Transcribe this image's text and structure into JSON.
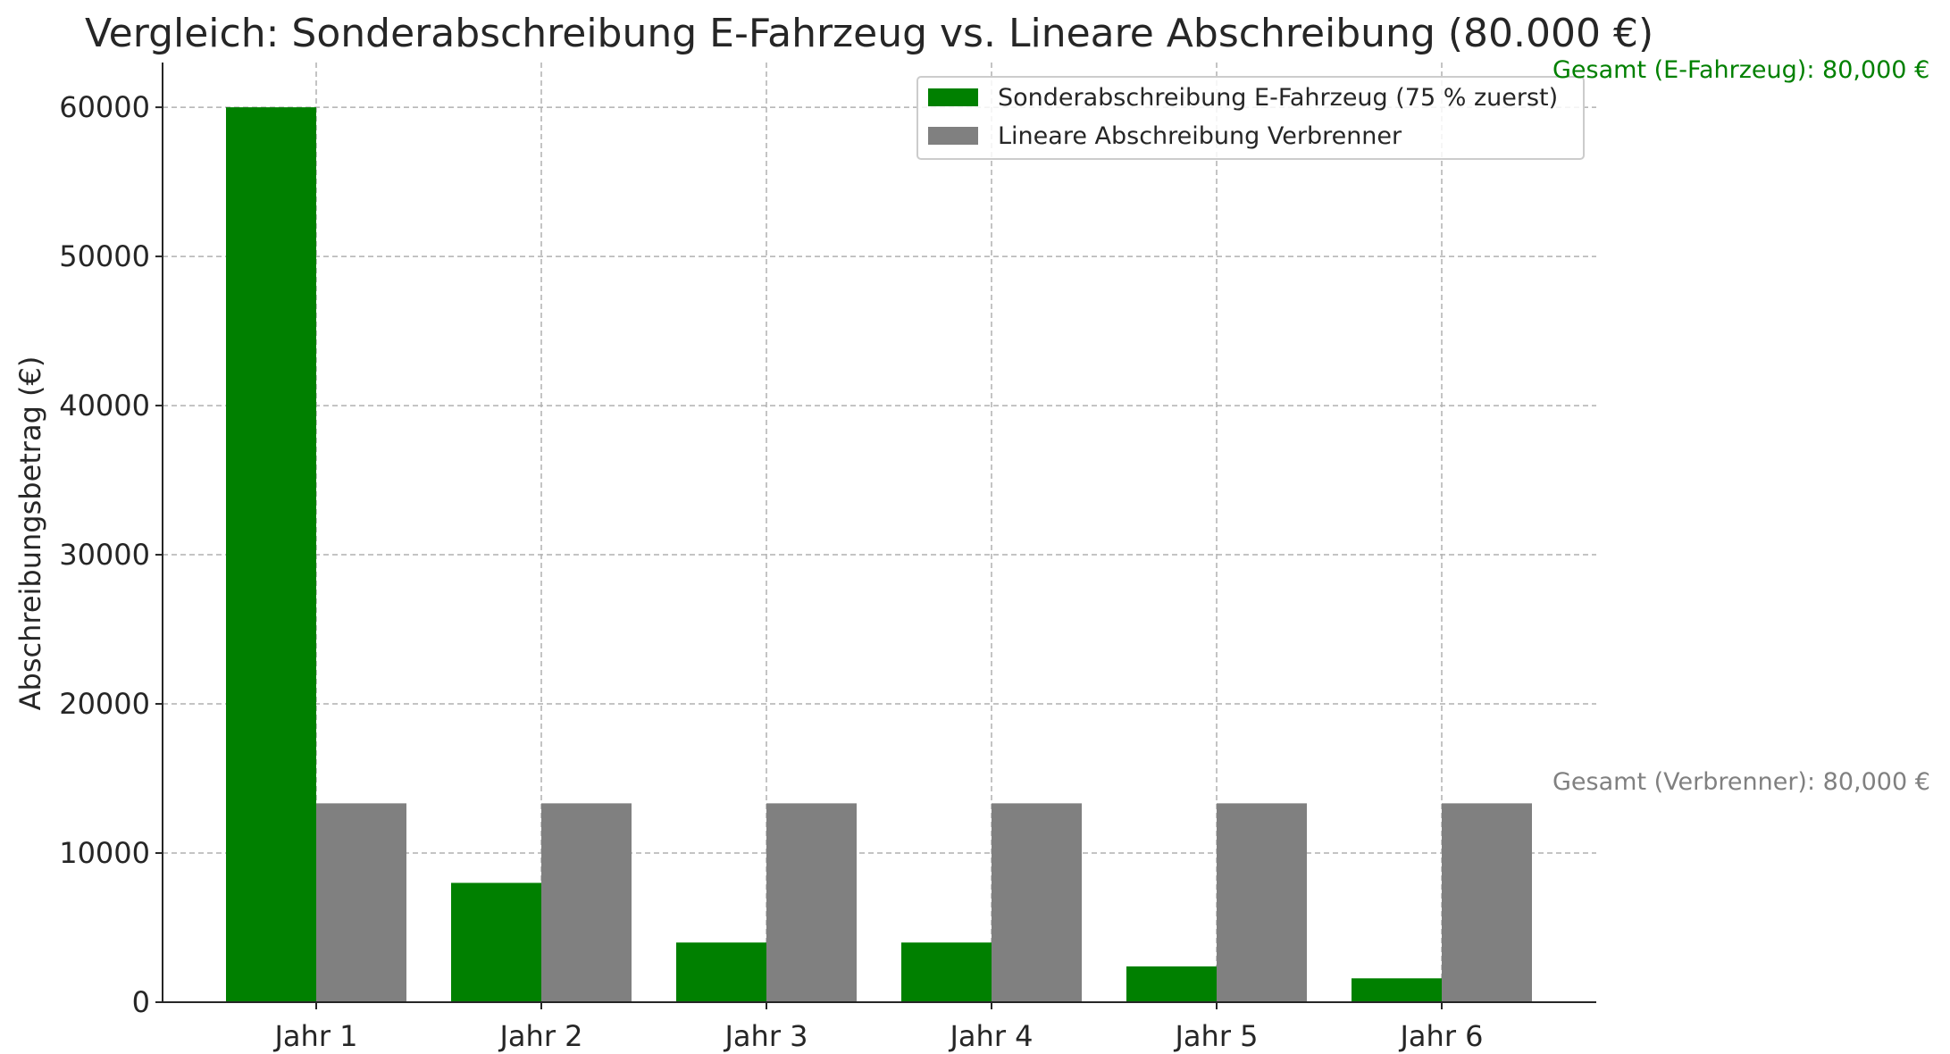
{
  "chart_data": {
    "type": "bar",
    "title": "Vergleich: Sonderabschreibung E-Fahrzeug vs. Lineare Abschreibung (80.000 €)",
    "xlabel": "",
    "ylabel": "Abschreibungsbetrag (€)",
    "categories": [
      "Jahr 1",
      "Jahr 2",
      "Jahr 3",
      "Jahr 4",
      "Jahr 5",
      "Jahr 6"
    ],
    "ylim": [
      0,
      63000
    ],
    "yticks": [
      0,
      10000,
      20000,
      30000,
      40000,
      50000,
      60000
    ],
    "grid": true,
    "legend_position": "top-right",
    "series": [
      {
        "name": "Sonderabschreibung E-Fahrzeug (75 % zuerst)",
        "color": "#008000",
        "values": [
          60000,
          8000,
          4000,
          4000,
          2400,
          1600
        ]
      },
      {
        "name": "Lineare Abschreibung Verbrenner",
        "color": "#808080",
        "values": [
          13333,
          13333,
          13333,
          13333,
          13333,
          13333
        ]
      }
    ],
    "annotations": [
      {
        "text": "Gesamt (E-Fahrzeug): 80,000 €",
        "color": "#008000"
      },
      {
        "text": "Gesamt (Verbrenner): 80,000 €",
        "color": "#808080"
      }
    ]
  }
}
